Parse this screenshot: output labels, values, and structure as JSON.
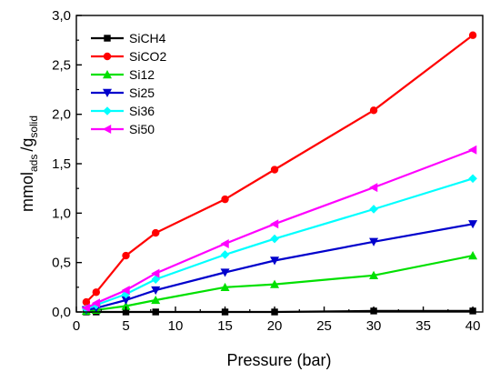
{
  "chart_data": {
    "type": "line",
    "title": "",
    "xlabel": "Pressure (bar)",
    "ylabel": {
      "main": "mmol",
      "main_sub": "ads",
      "sep": "/g",
      "sep_sub": "solid"
    },
    "xlim": [
      0,
      41
    ],
    "ylim": [
      0,
      3.0
    ],
    "xticks": [
      0,
      5,
      10,
      15,
      20,
      25,
      30,
      35,
      40
    ],
    "yticks": [
      0,
      0.5,
      1.0,
      1.5,
      2.0,
      2.5,
      3.0
    ],
    "xtick_labels": [
      "0",
      "5",
      "10",
      "15",
      "20",
      "25",
      "30",
      "35",
      "40"
    ],
    "ytick_labels": [
      "0,0",
      "0,5",
      "1,0",
      "1,5",
      "2,0",
      "2,5",
      "3,0"
    ],
    "grid": false,
    "legend_position": "top-left",
    "series": [
      {
        "name": "SiCH4",
        "color": "#000000",
        "marker": "square",
        "x": [
          1,
          2,
          5,
          8,
          15,
          20,
          30,
          40
        ],
        "y": [
          0.0,
          0.0,
          0.0,
          0.0,
          0.0,
          0.0,
          0.01,
          0.01
        ]
      },
      {
        "name": "SiCO2",
        "color": "#ff0000",
        "marker": "circle",
        "x": [
          1,
          2,
          5,
          8,
          15,
          20,
          30,
          40
        ],
        "y": [
          0.1,
          0.2,
          0.57,
          0.8,
          1.14,
          1.44,
          2.04,
          2.8
        ]
      },
      {
        "name": "Si12",
        "color": "#00e000",
        "marker": "triangle-up",
        "x": [
          1,
          2,
          5,
          8,
          15,
          20,
          30,
          40
        ],
        "y": [
          0.01,
          0.02,
          0.06,
          0.12,
          0.25,
          0.28,
          0.37,
          0.57
        ]
      },
      {
        "name": "Si25",
        "color": "#0000cc",
        "marker": "triangle-down",
        "x": [
          1,
          2,
          5,
          8,
          15,
          20,
          30,
          40
        ],
        "y": [
          0.02,
          0.04,
          0.12,
          0.22,
          0.4,
          0.52,
          0.71,
          0.89
        ]
      },
      {
        "name": "Si36",
        "color": "#00ffff",
        "marker": "diamond",
        "x": [
          1,
          2,
          5,
          8,
          15,
          20,
          30,
          40
        ],
        "y": [
          0.03,
          0.07,
          0.18,
          0.33,
          0.58,
          0.74,
          1.04,
          1.35
        ]
      },
      {
        "name": "Si50",
        "color": "#ff00ff",
        "marker": "triangle-left",
        "x": [
          1,
          2,
          5,
          8,
          15,
          20,
          30,
          40
        ],
        "y": [
          0.04,
          0.09,
          0.22,
          0.39,
          0.69,
          0.89,
          1.26,
          1.64
        ]
      }
    ]
  }
}
